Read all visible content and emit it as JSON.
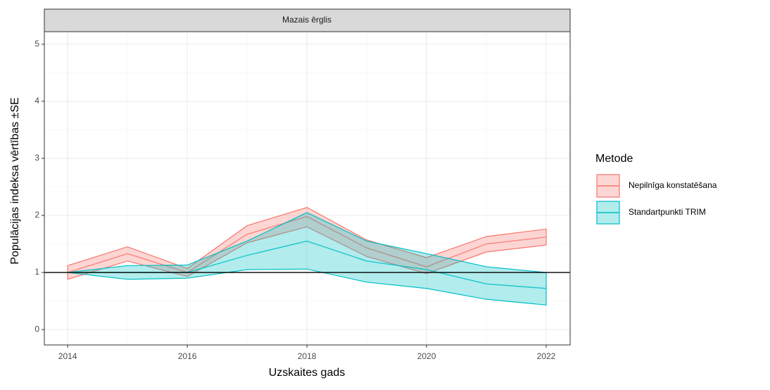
{
  "chart_data": {
    "type": "ribbon-line",
    "facet": "Mazais ērglis",
    "x_label": "Uzskaites gads",
    "y_label": "Populācijas indeksa vērtības ±SE",
    "legend_title": "Metode",
    "x": [
      2014,
      2015,
      2016,
      2017,
      2018,
      2019,
      2020,
      2021,
      2022
    ],
    "series": [
      {
        "name": "Nepilnīga konstatēšana",
        "color": "#F8766D",
        "values": [
          1.0,
          1.33,
          1.0,
          1.67,
          1.98,
          1.43,
          1.1,
          1.5,
          1.62
        ],
        "lower": [
          0.88,
          1.2,
          0.93,
          1.52,
          1.8,
          1.28,
          0.98,
          1.36,
          1.48
        ],
        "upper": [
          1.12,
          1.45,
          1.07,
          1.82,
          2.14,
          1.57,
          1.26,
          1.63,
          1.76
        ]
      },
      {
        "name": "Standartpunkti TRIM",
        "color": "#00BFC4",
        "values": [
          1.0,
          1.0,
          1.0,
          1.3,
          1.55,
          1.2,
          1.05,
          0.8,
          0.72
        ],
        "lower": [
          1.0,
          0.88,
          0.9,
          1.05,
          1.06,
          0.83,
          0.72,
          0.53,
          0.43
        ],
        "upper": [
          1.0,
          1.12,
          1.13,
          1.55,
          2.05,
          1.55,
          1.33,
          1.1,
          1.0
        ]
      }
    ],
    "hline": 1,
    "xlim": [
      2013.61,
      2022.4
    ],
    "xticks": [
      2014,
      2016,
      2018,
      2020,
      2022
    ],
    "ylim": [
      -0.27,
      5.22
    ],
    "yticks": [
      0,
      1,
      2,
      3,
      4,
      5
    ],
    "grid": true,
    "legend_position": "right"
  }
}
